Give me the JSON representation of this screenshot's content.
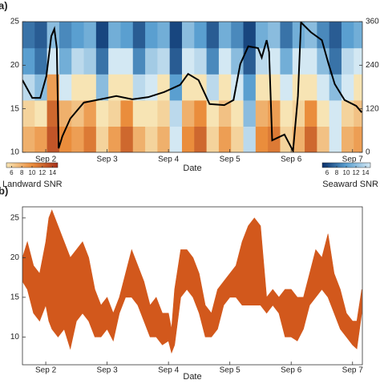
{
  "chart_data": [
    {
      "type": "heatmap",
      "label": "a)",
      "xlabel": "Date",
      "xlim": [
        1.62,
        7.16
      ],
      "xticks": [
        {
          "value": 2,
          "label": "Sep 2"
        },
        {
          "value": 3,
          "label": "Sep 3"
        },
        {
          "value": 4,
          "label": "Sep 4"
        },
        {
          "value": 5,
          "label": "Sep 5"
        },
        {
          "value": 6,
          "label": "Sep 6"
        },
        {
          "value": 7,
          "label": "Sep 7"
        }
      ],
      "ylim": [
        10,
        25
      ],
      "yticks": [
        10,
        15,
        20,
        25
      ],
      "y2lim": [
        0,
        360
      ],
      "y2ticks": [
        0,
        120,
        240,
        360
      ],
      "heatmap": {
        "x": [
          1.72,
          1.92,
          2.12,
          2.32,
          2.52,
          2.72,
          2.92,
          3.12,
          3.32,
          3.52,
          3.72,
          3.92,
          4.12,
          4.32,
          4.52,
          4.72,
          4.92,
          5.12,
          5.32,
          5.52,
          5.72,
          5.92,
          6.12,
          6.32,
          6.52,
          6.72,
          6.92,
          7.12
        ],
        "y": [
          11.5,
          14.5,
          17.5,
          20.5,
          23.5
        ],
        "values": [
          [
            8,
            9,
            13,
            10,
            9,
            11,
            6,
            9,
            12,
            8,
            6,
            8,
            -4,
            10,
            12,
            6,
            9,
            6,
            -6,
            10,
            11,
            6,
            8,
            12,
            7,
            -3,
            8,
            9
          ],
          [
            6,
            4,
            12,
            8,
            7,
            9,
            2,
            6,
            10,
            5,
            4,
            6,
            -6,
            8,
            10,
            3,
            7,
            4,
            -8,
            8,
            9,
            4,
            6,
            10,
            5,
            -5,
            6,
            7
          ],
          [
            -6,
            -8,
            9,
            -5,
            2,
            4,
            -8,
            2,
            5,
            -6,
            -2,
            3,
            -10,
            4,
            3,
            -6,
            2,
            -3,
            -10,
            3,
            4,
            -4,
            2,
            5,
            -3,
            -8,
            -2,
            3
          ],
          [
            -10,
            -12,
            -4,
            -9,
            -6,
            -7,
            -12,
            -5,
            -4,
            -11,
            -7,
            -6,
            -13,
            -3,
            -6,
            -11,
            -5,
            -8,
            -13,
            -6,
            -4,
            -9,
            -5,
            -3,
            -8,
            -12,
            -6,
            -4
          ],
          [
            -12,
            -13,
            -8,
            -11,
            -10,
            -9,
            -14,
            -9,
            -10,
            -13,
            -10,
            -9,
            -14,
            -8,
            -10,
            -13,
            -9,
            -11,
            -14,
            -9,
            -8,
            -12,
            -9,
            -8,
            -11,
            -13,
            -10,
            -9
          ]
        ]
      },
      "series": [
        {
          "axis": "y2",
          "color": "#000000",
          "x": [
            1.62,
            1.78,
            1.91,
            2.01,
            2.09,
            2.14,
            2.18,
            2.21,
            2.27,
            2.4,
            2.62,
            2.89,
            3.15,
            3.41,
            3.67,
            3.93,
            4.19,
            4.32,
            4.49,
            4.67,
            4.91,
            5.06,
            5.17,
            5.3,
            5.46,
            5.52,
            5.6,
            5.64,
            5.69,
            5.89,
            6.03,
            6.11,
            6.16,
            6.32,
            6.5,
            6.61,
            6.71,
            6.87,
            7.06,
            7.15
          ],
          "values": [
            199,
            150,
            150,
            210,
            320,
            340,
            287,
            11,
            44,
            93,
            137,
            146,
            155,
            146,
            152,
            166,
            186,
            216,
            199,
            133,
            130,
            144,
            243,
            292,
            287,
            261,
            309,
            276,
            33,
            49,
            4,
            155,
            358,
            331,
            309,
            243,
            188,
            144,
            128,
            110
          ]
        }
      ],
      "colorbars": [
        {
          "label": "Landward SNR",
          "clim": [
            5,
            15
          ],
          "ticks": [
            6,
            8,
            10,
            12,
            14
          ],
          "colors": [
            "#f7e4b4",
            "#ea8d3c",
            "#a5301a"
          ]
        },
        {
          "label": "Seaward SNR",
          "clim": [
            5,
            15
          ],
          "ticks": [
            6,
            8,
            10,
            12,
            14
          ],
          "colors": [
            "#d3e8f3",
            "#5a9fd0",
            "#08306b"
          ]
        }
      ]
    },
    {
      "type": "band",
      "label": "b)",
      "xlabel": "Date",
      "color": "#d2581c",
      "xlim": [
        1.62,
        7.16
      ],
      "xticks": [
        {
          "value": 2,
          "label": "Sep 2"
        },
        {
          "value": 3,
          "label": "Sep 3"
        },
        {
          "value": 4,
          "label": "Sep 4"
        },
        {
          "value": 5,
          "label": "Sep 5"
        },
        {
          "value": 6,
          "label": "Sep 6"
        },
        {
          "value": 7,
          "label": "Sep 7"
        }
      ],
      "ylim": [
        6.5,
        26.4
      ],
      "yticks": [
        10,
        15,
        20,
        25
      ],
      "x": [
        1.62,
        1.7,
        1.8,
        1.9,
        2.0,
        2.05,
        2.1,
        2.2,
        2.3,
        2.4,
        2.5,
        2.6,
        2.7,
        2.8,
        2.9,
        3.0,
        3.1,
        3.2,
        3.3,
        3.4,
        3.5,
        3.6,
        3.7,
        3.8,
        3.9,
        4.0,
        4.05,
        4.1,
        4.2,
        4.3,
        4.4,
        4.5,
        4.6,
        4.7,
        4.8,
        4.9,
        5.0,
        5.1,
        5.2,
        5.3,
        5.4,
        5.5,
        5.6,
        5.7,
        5.8,
        5.9,
        6.0,
        6.1,
        6.2,
        6.3,
        6.4,
        6.5,
        6.6,
        6.7,
        6.8,
        6.9,
        7.0,
        7.07,
        7.15
      ],
      "lower": [
        17,
        16,
        13,
        12,
        14,
        12,
        11,
        10,
        11,
        8.5,
        12,
        13,
        12,
        10,
        10,
        11,
        9.5,
        13,
        15,
        15,
        14,
        12,
        10,
        10,
        9,
        9.5,
        8,
        9,
        15,
        16,
        15,
        13,
        10,
        10,
        11,
        14,
        15,
        15,
        14,
        14,
        14,
        14,
        13,
        14,
        13,
        10,
        10,
        9.5,
        11,
        14,
        15,
        16,
        15,
        13,
        11,
        10,
        9,
        8.5,
        13
      ],
      "upper": [
        20,
        22,
        19,
        18,
        22,
        25,
        26,
        24,
        22,
        20,
        21,
        22,
        20,
        16,
        14,
        15,
        13,
        15,
        18,
        21,
        19,
        17,
        14,
        15,
        13,
        13,
        11,
        16,
        21,
        21,
        20,
        18,
        14,
        13,
        16,
        17,
        18,
        19,
        22,
        24,
        25,
        24,
        15,
        16,
        15,
        16,
        16,
        15,
        15,
        18,
        21,
        20,
        23,
        18,
        16,
        13,
        12,
        12,
        16
      ]
    }
  ]
}
